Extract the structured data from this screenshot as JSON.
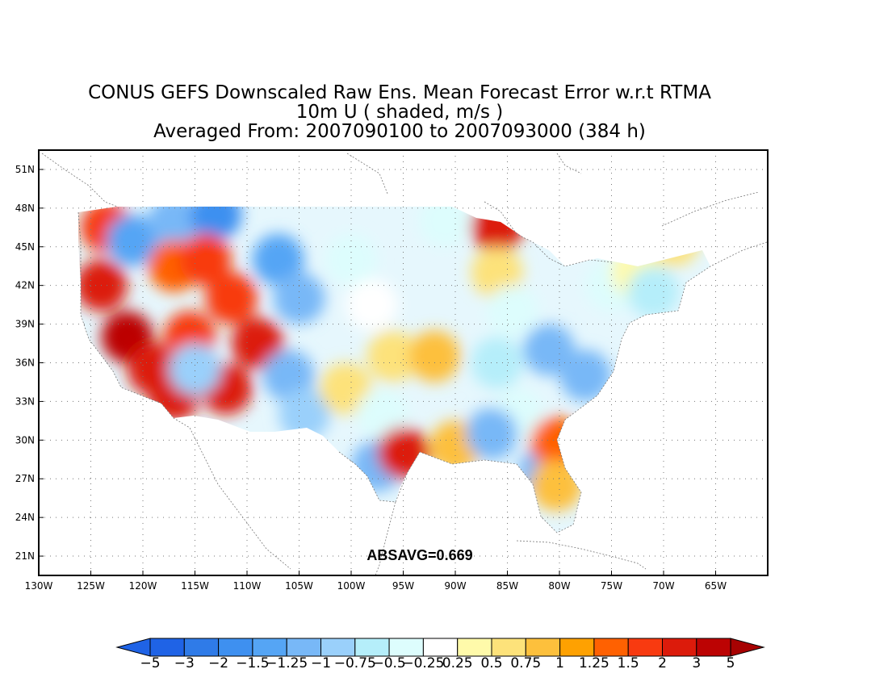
{
  "title": {
    "line1": "CONUS GEFS Downscaled Raw Ens. Mean Forecast Error w.r.t RTMA",
    "line2": "10m U ( shaded, m/s )",
    "line3": "Averaged From: 2007090100 to 2007093000 (384 h)"
  },
  "annotation": "ABSAVG=0.669",
  "map": {
    "lon_range": [
      -130,
      -60
    ],
    "lat_range": [
      19.5,
      52.5
    ],
    "lat_ticks": [
      {
        "value": 51,
        "label": "51N"
      },
      {
        "value": 48,
        "label": "48N"
      },
      {
        "value": 45,
        "label": "45N"
      },
      {
        "value": 42,
        "label": "42N"
      },
      {
        "value": 39,
        "label": "39N"
      },
      {
        "value": 36,
        "label": "36N"
      },
      {
        "value": 33,
        "label": "33N"
      },
      {
        "value": 30,
        "label": "30N"
      },
      {
        "value": 27,
        "label": "27N"
      },
      {
        "value": 24,
        "label": "24N"
      },
      {
        "value": 21,
        "label": "21N"
      }
    ],
    "lon_ticks": [
      {
        "value": -130,
        "label": "130W"
      },
      {
        "value": -125,
        "label": "125W"
      },
      {
        "value": -120,
        "label": "120W"
      },
      {
        "value": -115,
        "label": "115W"
      },
      {
        "value": -110,
        "label": "110W"
      },
      {
        "value": -105,
        "label": "105W"
      },
      {
        "value": -100,
        "label": "100W"
      },
      {
        "value": -95,
        "label": "95W"
      },
      {
        "value": -90,
        "label": "90W"
      },
      {
        "value": -85,
        "label": "85W"
      },
      {
        "value": -80,
        "label": "80W"
      },
      {
        "value": -75,
        "label": "75W"
      },
      {
        "value": -70,
        "label": "70W"
      },
      {
        "value": -65,
        "label": "65W"
      }
    ],
    "grid": true,
    "field_regions": [
      {
        "lon": -124.0,
        "lat": 42.0,
        "value": 2.5
      },
      {
        "lon": -123.5,
        "lat": 46.5,
        "value": 1.5
      },
      {
        "lon": -121.5,
        "lat": 38.0,
        "value": 3.0
      },
      {
        "lon": -119.0,
        "lat": 35.5,
        "value": 2.5
      },
      {
        "lon": -117.0,
        "lat": 33.5,
        "value": 2.0
      },
      {
        "lon": -115.5,
        "lat": 38.0,
        "value": 1.5
      },
      {
        "lon": -121.0,
        "lat": 45.5,
        "value": -1.5
      },
      {
        "lon": -117.0,
        "lat": 47.0,
        "value": -1.25
      },
      {
        "lon": -113.0,
        "lat": 47.5,
        "value": -2.0
      },
      {
        "lon": -117.0,
        "lat": 43.5,
        "value": 1.25
      },
      {
        "lon": -114.0,
        "lat": 44.0,
        "value": 1.5
      },
      {
        "lon": -111.5,
        "lat": 41.0,
        "value": 1.5
      },
      {
        "lon": -112.0,
        "lat": 34.0,
        "value": 2.0
      },
      {
        "lon": -109.0,
        "lat": 37.5,
        "value": 2.0
      },
      {
        "lon": -115.0,
        "lat": 35.5,
        "value": -1.0
      },
      {
        "lon": -107.0,
        "lat": 44.0,
        "value": -1.5
      },
      {
        "lon": -105.0,
        "lat": 41.0,
        "value": -1.25
      },
      {
        "lon": -106.0,
        "lat": 35.0,
        "value": -1.25
      },
      {
        "lon": -104.5,
        "lat": 32.0,
        "value": -1.0
      },
      {
        "lon": -100.0,
        "lat": 44.0,
        "value": -0.5
      },
      {
        "lon": -98.0,
        "lat": 40.5,
        "value": -0.25
      },
      {
        "lon": -96.0,
        "lat": 36.5,
        "value": 0.5
      },
      {
        "lon": -92.0,
        "lat": 36.5,
        "value": 0.75
      },
      {
        "lon": -100.5,
        "lat": 34.0,
        "value": 0.5
      },
      {
        "lon": -97.0,
        "lat": 32.0,
        "value": -0.5
      },
      {
        "lon": -97.5,
        "lat": 28.0,
        "value": -1.25
      },
      {
        "lon": -95.0,
        "lat": 29.0,
        "value": 2.5
      },
      {
        "lon": -90.0,
        "lat": 29.5,
        "value": 0.75
      },
      {
        "lon": -91.0,
        "lat": 47.0,
        "value": -0.5
      },
      {
        "lon": -86.0,
        "lat": 46.5,
        "value": 2.0
      },
      {
        "lon": -86.0,
        "lat": 43.0,
        "value": 0.5
      },
      {
        "lon": -84.5,
        "lat": 40.0,
        "value": -0.5
      },
      {
        "lon": -86.0,
        "lat": 36.0,
        "value": -0.75
      },
      {
        "lon": -81.0,
        "lat": 37.0,
        "value": -1.25
      },
      {
        "lon": -77.5,
        "lat": 35.0,
        "value": -1.25
      },
      {
        "lon": -84.0,
        "lat": 32.0,
        "value": -0.5
      },
      {
        "lon": -86.5,
        "lat": 30.5,
        "value": -1.25
      },
      {
        "lon": -81.5,
        "lat": 27.5,
        "value": -1.25
      },
      {
        "lon": -80.3,
        "lat": 29.8,
        "value": 1.25
      },
      {
        "lon": -80.3,
        "lat": 26.5,
        "value": 0.75
      },
      {
        "lon": -75.0,
        "lat": 42.0,
        "value": -0.5
      },
      {
        "lon": -72.5,
        "lat": 43.0,
        "value": 0.25
      },
      {
        "lon": -69.0,
        "lat": 45.5,
        "value": 0.5
      },
      {
        "lon": -71.0,
        "lat": 41.5,
        "value": -0.75
      }
    ]
  },
  "colorbar": {
    "colors": [
      "#1f63e6",
      "#2f7be8",
      "#3e90f0",
      "#55a5f5",
      "#78b8f7",
      "#9ad0fb",
      "#b5eefa",
      "#ddfdfd",
      "#ffffff",
      "#fffaaa",
      "#fde27a",
      "#fdc03c",
      "#fea101",
      "#ff6101",
      "#f83a10",
      "#dc1b0b",
      "#bc0303"
    ],
    "low_arrow_color": "#1f63e6",
    "high_arrow_color": "#a70202",
    "labels": [
      "−5",
      "−3",
      "−2",
      "−1.5",
      "−1.25",
      "−1",
      "−0.75",
      "−0.5",
      "−0.25",
      "0.25",
      "0.5",
      "0.75",
      "1",
      "1.25",
      "1.5",
      "2",
      "3",
      "5"
    ],
    "levels": [
      -5,
      -3,
      -2,
      -1.5,
      -1.25,
      -1,
      -0.75,
      -0.5,
      -0.25,
      0.25,
      0.5,
      0.75,
      1,
      1.25,
      1.5,
      2,
      3,
      5
    ]
  }
}
